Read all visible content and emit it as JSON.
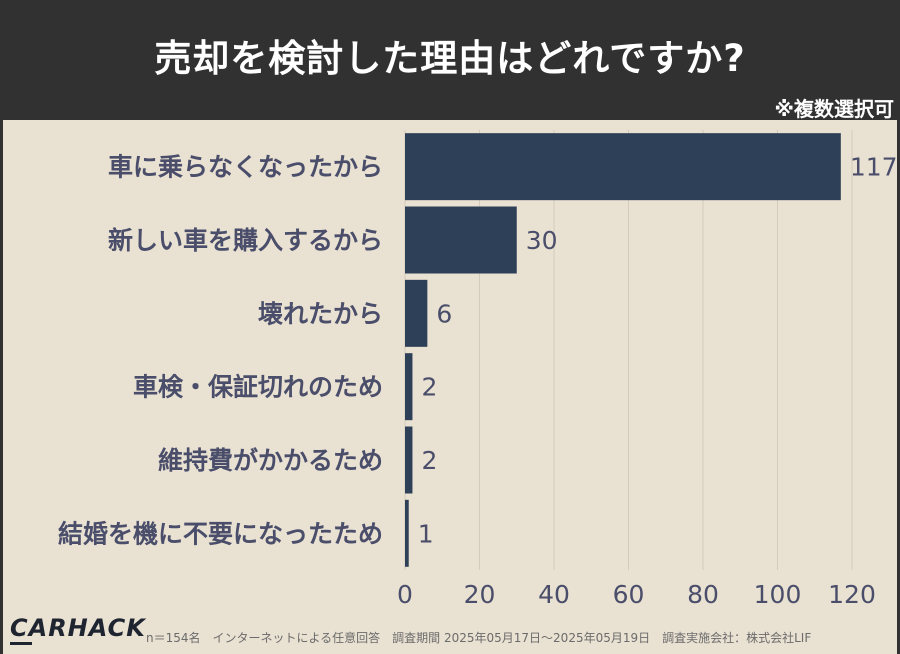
{
  "header": {
    "title": "売却を検討した理由はどれですか?",
    "note": "※複数選択可"
  },
  "chart_data": {
    "type": "bar",
    "orientation": "horizontal",
    "categories": [
      "車に乗らなくなったから",
      "新しい車を購入するから",
      "壊れたから",
      "車検・保証切れのため",
      "維持費がかかるため",
      "結婚を機に不要になったため"
    ],
    "values": [
      117,
      30,
      6,
      2,
      2,
      1
    ],
    "xlim": [
      0,
      120
    ],
    "xticks": [
      0,
      20,
      40,
      60,
      80,
      100,
      120
    ],
    "grid": "vertical",
    "bar_color": "#2d4057",
    "title": "売却を検討した理由はどれですか?"
  },
  "footer": {
    "logo": "CARHACK",
    "text": "n＝154名　インターネットによる任意回答　調査期間 2025年05月17日〜2025年05月19日　調査実施会社：株式会社LIF"
  },
  "colors": {
    "header_bg": "#313131",
    "page_bg": "#e9e1d2",
    "bar": "#2d4057",
    "label_text": "#4a4e6a",
    "grid": "#d3cbbb"
  }
}
